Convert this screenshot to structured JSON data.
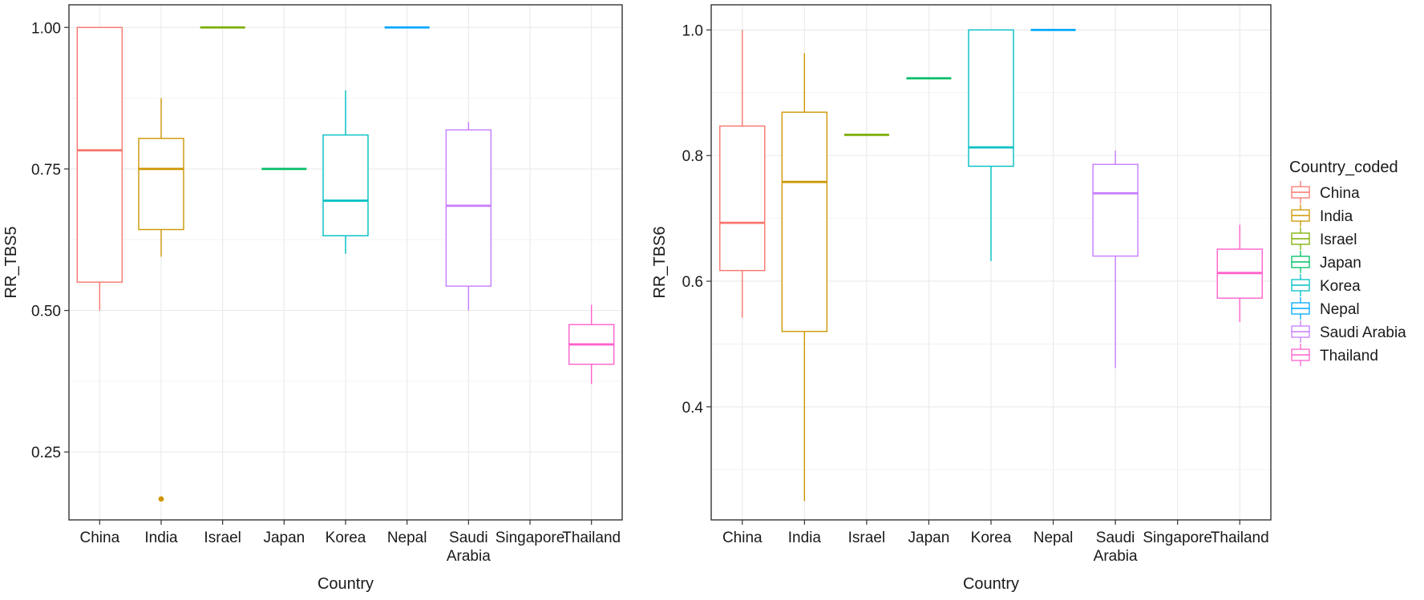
{
  "chart_data": [
    {
      "type": "boxplot",
      "title": "",
      "xlabel": "Country",
      "ylabel": "RR_TBS5",
      "categories": [
        "China",
        "India",
        "Israel",
        "Japan",
        "Korea",
        "Nepal",
        "Saudi\nArabia",
        "Singapore",
        "Thailand"
      ],
      "ylim": [
        0.13,
        1.04
      ],
      "yticks": [
        0.25,
        0.5,
        0.75,
        1.0
      ],
      "ytick_labels": [
        "0.25",
        "0.50",
        "0.75",
        "1.00"
      ],
      "grid": true,
      "boxes": [
        {
          "category": "China",
          "color": "#F8766D",
          "min": 0.5,
          "q1": 0.55,
          "median": 0.783,
          "q3": 1.0,
          "max": 1.0,
          "outliers": []
        },
        {
          "category": "India",
          "color": "#CD9600",
          "min": 0.595,
          "q1": 0.643,
          "median": 0.75,
          "q3": 0.804,
          "max": 0.875,
          "outliers": [
            0.167
          ]
        },
        {
          "category": "Israel",
          "color": "#7CAE00",
          "min": 1.0,
          "q1": 1.0,
          "median": 1.0,
          "q3": 1.0,
          "max": 1.0,
          "outliers": []
        },
        {
          "category": "Japan",
          "color": "#00BE67",
          "min": 0.75,
          "q1": 0.75,
          "median": 0.75,
          "q3": 0.75,
          "max": 0.75,
          "outliers": []
        },
        {
          "category": "Korea",
          "color": "#00BFC4",
          "min": 0.6,
          "q1": 0.632,
          "median": 0.694,
          "q3": 0.81,
          "max": 0.889,
          "outliers": []
        },
        {
          "category": "Nepal",
          "color": "#00A9FF",
          "min": 1.0,
          "q1": 1.0,
          "median": 1.0,
          "q3": 1.0,
          "max": 1.0,
          "outliers": []
        },
        {
          "category": "Saudi\nArabia",
          "color": "#C77CFF",
          "min": 0.5,
          "q1": 0.543,
          "median": 0.685,
          "q3": 0.819,
          "max": 0.833,
          "outliers": []
        },
        {
          "category": "Thailand",
          "color": "#FF61CC",
          "min": 0.37,
          "q1": 0.405,
          "median": 0.44,
          "q3": 0.475,
          "max": 0.51,
          "outliers": []
        }
      ]
    },
    {
      "type": "boxplot",
      "title": "",
      "xlabel": "Country",
      "ylabel": "RR_TBS6",
      "categories": [
        "China",
        "India",
        "Israel",
        "Japan",
        "Korea",
        "Nepal",
        "Saudi\nArabia",
        "Singapore",
        "Thailand"
      ],
      "ylim": [
        0.22,
        1.04
      ],
      "yticks": [
        0.4,
        0.6,
        0.8,
        1.0
      ],
      "ytick_labels": [
        "0.4",
        "0.6",
        "0.8",
        "1.0"
      ],
      "grid": true,
      "boxes": [
        {
          "category": "China",
          "color": "#F8766D",
          "min": 0.542,
          "q1": 0.617,
          "median": 0.693,
          "q3": 0.847,
          "max": 1.0,
          "outliers": []
        },
        {
          "category": "India",
          "color": "#CD9600",
          "min": 0.25,
          "q1": 0.52,
          "median": 0.758,
          "q3": 0.869,
          "max": 0.963,
          "outliers": []
        },
        {
          "category": "Israel",
          "color": "#7CAE00",
          "min": 0.833,
          "q1": 0.833,
          "median": 0.833,
          "q3": 0.833,
          "max": 0.833,
          "outliers": []
        },
        {
          "category": "Japan",
          "color": "#00BE67",
          "min": 0.923,
          "q1": 0.923,
          "median": 0.923,
          "q3": 0.923,
          "max": 0.923,
          "outliers": []
        },
        {
          "category": "Korea",
          "color": "#00BFC4",
          "min": 0.632,
          "q1": 0.783,
          "median": 0.813,
          "q3": 1.0,
          "max": 1.0,
          "outliers": []
        },
        {
          "category": "Nepal",
          "color": "#00A9FF",
          "min": 1.0,
          "q1": 1.0,
          "median": 1.0,
          "q3": 1.0,
          "max": 1.0,
          "outliers": []
        },
        {
          "category": "Saudi\nArabia",
          "color": "#C77CFF",
          "min": 0.462,
          "q1": 0.64,
          "median": 0.74,
          "q3": 0.786,
          "max": 0.808,
          "outliers": []
        },
        {
          "category": "Thailand",
          "color": "#FF61CC",
          "min": 0.535,
          "q1": 0.573,
          "median": 0.613,
          "q3": 0.651,
          "max": 0.69,
          "outliers": []
        }
      ]
    }
  ],
  "legend": {
    "title": "Country_coded",
    "placement": "right",
    "entries": [
      {
        "label": "China",
        "color": "#F8766D"
      },
      {
        "label": "India",
        "color": "#CD9600"
      },
      {
        "label": "Israel",
        "color": "#7CAE00"
      },
      {
        "label": "Japan",
        "color": "#00BE67"
      },
      {
        "label": "Korea",
        "color": "#00BFC4"
      },
      {
        "label": "Nepal",
        "color": "#00A9FF"
      },
      {
        "label": "Saudi Arabia",
        "color": "#C77CFF"
      },
      {
        "label": "Thailand",
        "color": "#FF61CC"
      }
    ]
  }
}
